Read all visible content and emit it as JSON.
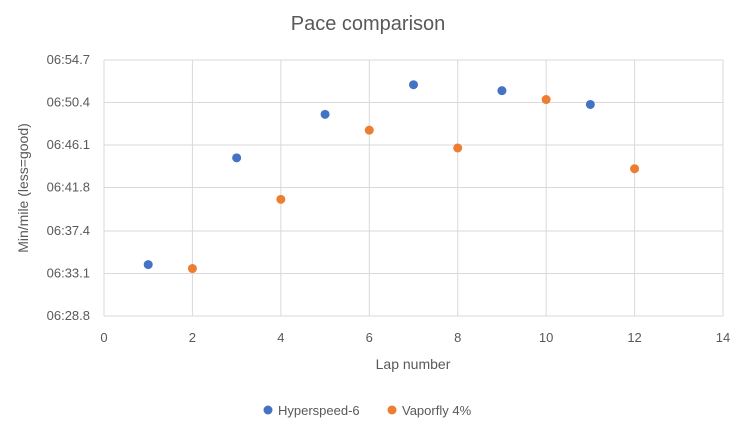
{
  "chart_data": {
    "type": "scatter",
    "title": "Pace comparison",
    "xlabel": "Lap number",
    "ylabel": "Min/mile (less=good)",
    "xlim": [
      0,
      14
    ],
    "x_ticks": [
      0,
      2,
      4,
      6,
      8,
      10,
      12,
      14
    ],
    "ylim": [
      "06:28.8",
      "06:54.7"
    ],
    "y_ticks": [
      "06:28.8",
      "06:33.1",
      "06:37.4",
      "06:41.8",
      "06:46.1",
      "06:50.4",
      "06:54.7"
    ],
    "grid": {
      "vertical": true,
      "horizontal": true
    },
    "legend_position": "bottom",
    "series": [
      {
        "name": "Hyperspeed-6",
        "color": "#4472c4",
        "points": [
          {
            "x": 1,
            "y": "06:34.0"
          },
          {
            "x": 3,
            "y": "06:44.8"
          },
          {
            "x": 5,
            "y": "06:49.2"
          },
          {
            "x": 7,
            "y": "06:52.2"
          },
          {
            "x": 9,
            "y": "06:51.6"
          },
          {
            "x": 11,
            "y": "06:50.2"
          }
        ]
      },
      {
        "name": "Vaporfly 4%",
        "color": "#ed7d31",
        "points": [
          {
            "x": 2,
            "y": "06:33.6"
          },
          {
            "x": 4,
            "y": "06:40.6"
          },
          {
            "x": 6,
            "y": "06:47.6"
          },
          {
            "x": 8,
            "y": "06:45.8"
          },
          {
            "x": 10,
            "y": "06:50.7"
          },
          {
            "x": 12,
            "y": "06:43.7"
          }
        ]
      }
    ]
  }
}
